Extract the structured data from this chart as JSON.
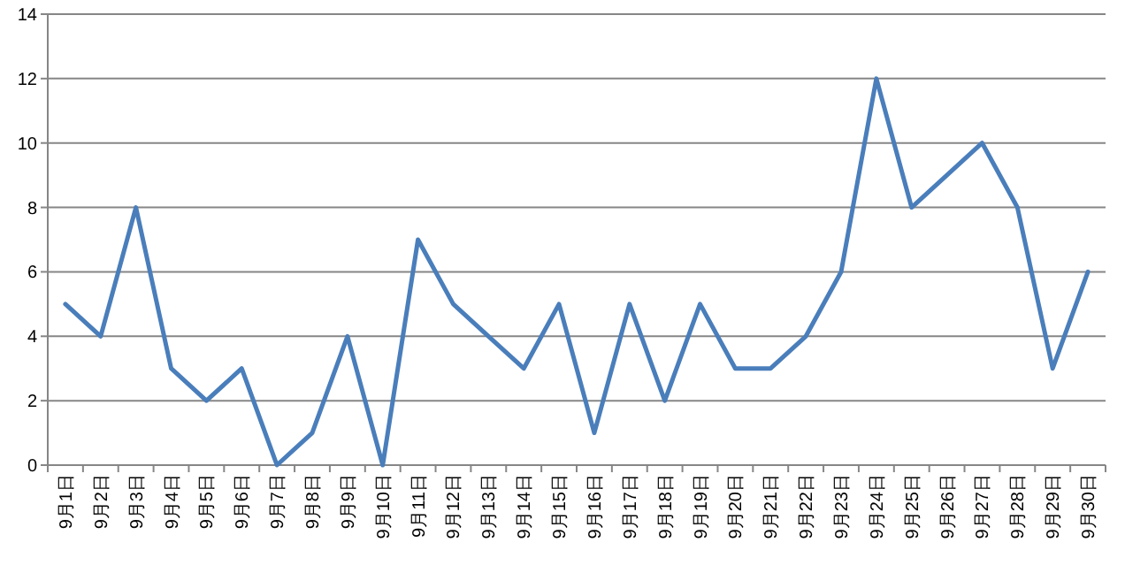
{
  "chart_data": {
    "type": "line",
    "categories": [
      "9月1日",
      "9月2日",
      "9月3日",
      "9月4日",
      "9月5日",
      "9月6日",
      "9月7日",
      "9月8日",
      "9月9日",
      "9月10日",
      "9月11日",
      "9月12日",
      "9月13日",
      "9月14日",
      "9月15日",
      "9月16日",
      "9月17日",
      "9月18日",
      "9月19日",
      "9月20日",
      "9月21日",
      "9月22日",
      "9月23日",
      "9月24日",
      "9月25日",
      "9月26日",
      "9月27日",
      "9月28日",
      "9月29日",
      "9月30日"
    ],
    "values": [
      5,
      4,
      8,
      3,
      2,
      3,
      0,
      1,
      4,
      0,
      7,
      5,
      4,
      3,
      5,
      1,
      5,
      2,
      5,
      3,
      3,
      4,
      6,
      12,
      8,
      9,
      10,
      8,
      3,
      6
    ],
    "color": "#4a7ebb",
    "ylim": [
      0,
      14
    ],
    "yticks": [
      0,
      2,
      4,
      6,
      8,
      10,
      12,
      14
    ],
    "grid": "y",
    "marker": "none",
    "line_style": "solid"
  }
}
